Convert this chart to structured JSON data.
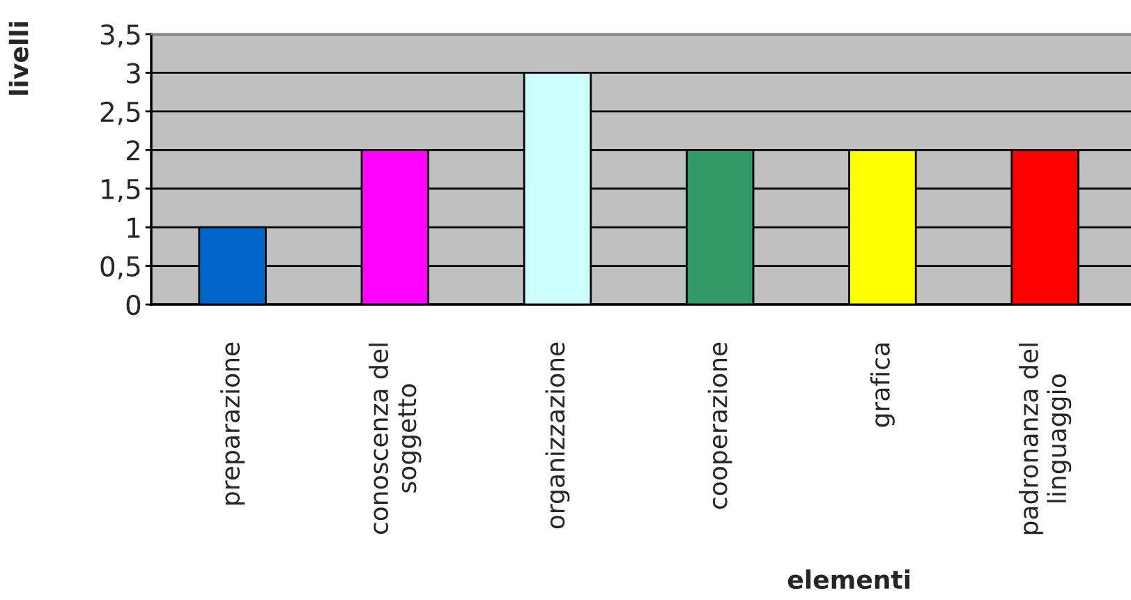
{
  "chart_data": {
    "type": "bar",
    "xlabel": "elementi",
    "ylabel": "livelli",
    "categories": [
      "preparazione",
      "conoscenza del\nsoggetto",
      "organizzazione",
      "cooperazione",
      "grafica",
      "padronanza del\nlinguaggio"
    ],
    "values": [
      1,
      2,
      3,
      2,
      2,
      2
    ],
    "colors": [
      "#0066cc",
      "#ff00ff",
      "#ccffff",
      "#339966",
      "#ffff00",
      "#ff0000"
    ],
    "ylim": [
      0,
      3.5
    ],
    "yticks": [
      0,
      {
        "value": 0.5,
        "label": "0,5"
      },
      1,
      {
        "value": 1.5,
        "label": "1,5"
      },
      2,
      {
        "value": 2.5,
        "label": "2,5"
      },
      3,
      {
        "value": 3.5,
        "label": "3,5"
      }
    ],
    "grid": "y",
    "legend": false
  }
}
